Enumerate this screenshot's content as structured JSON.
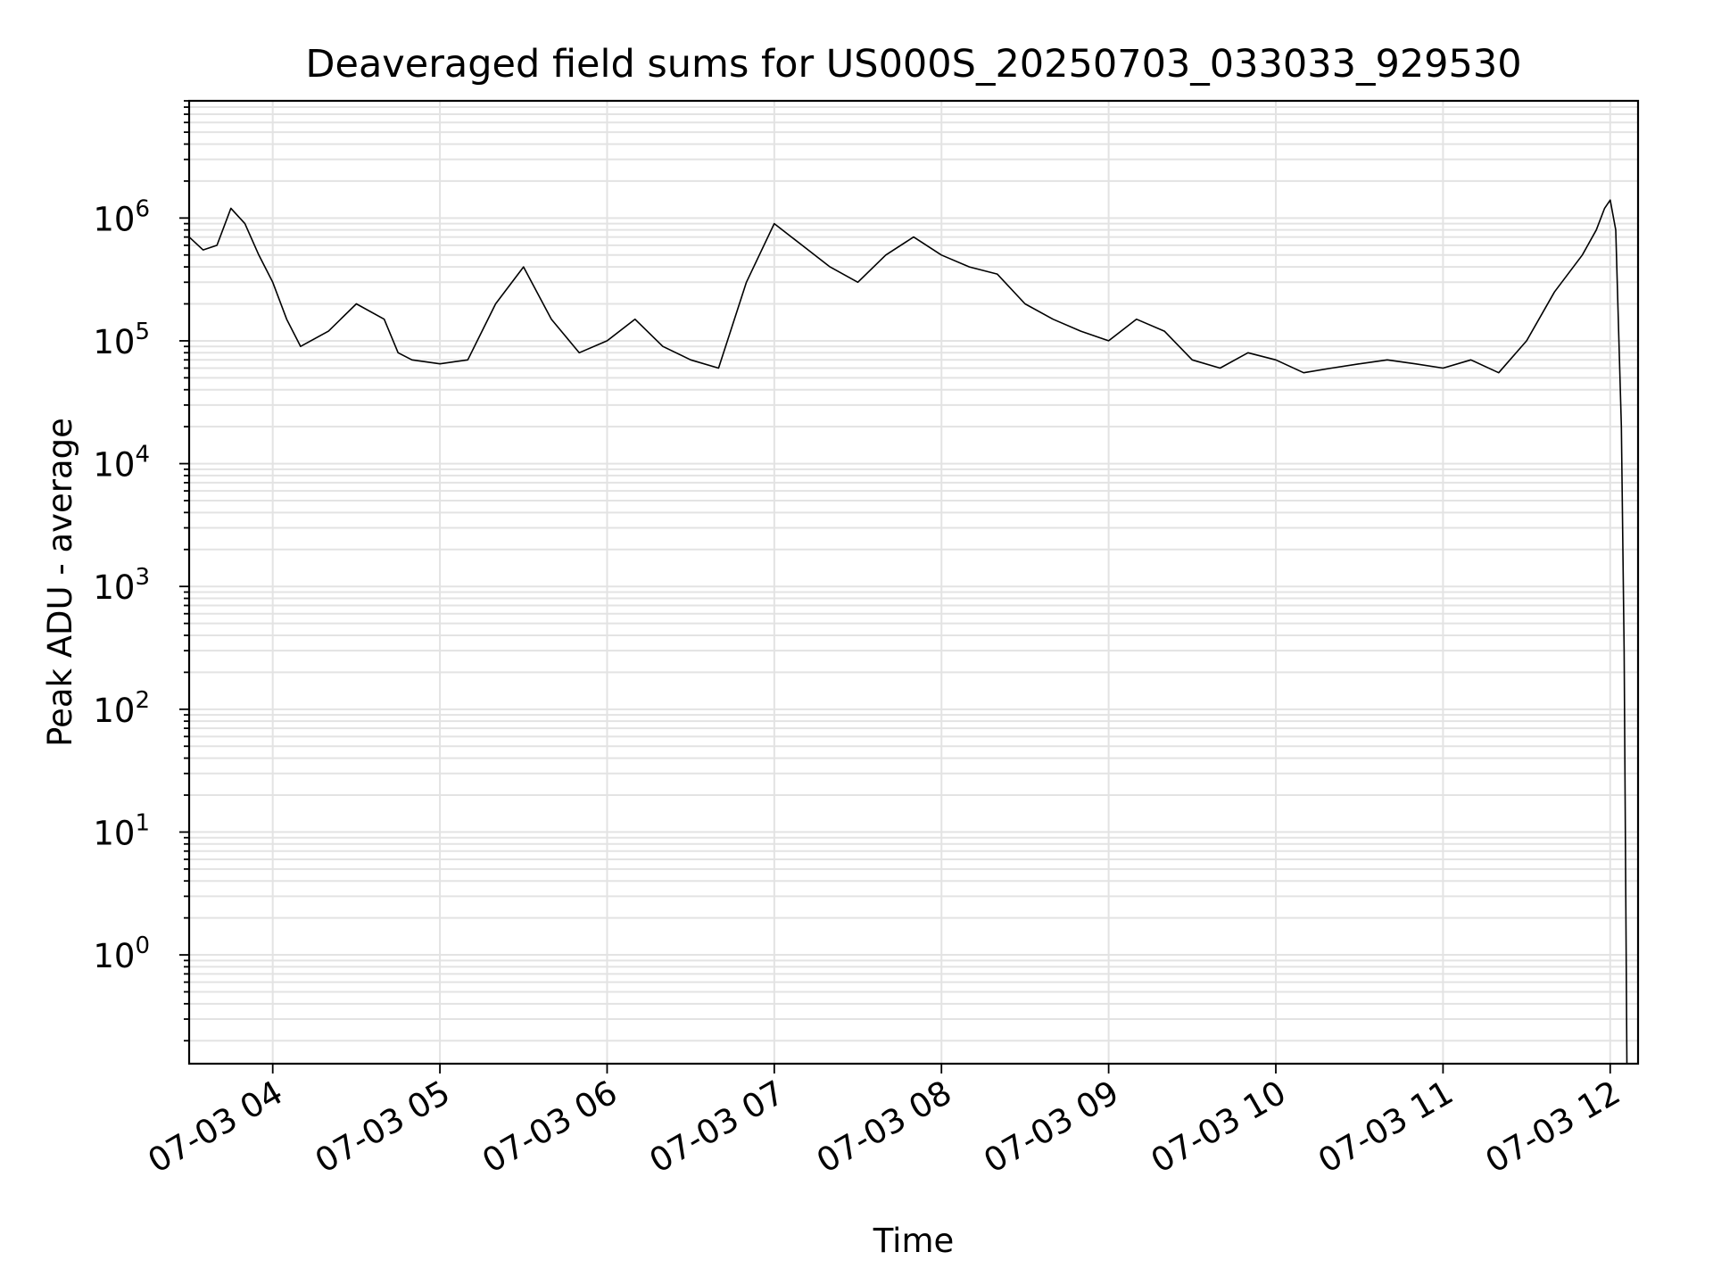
{
  "chart_data": {
    "type": "line",
    "title": "Deaveraged field sums for US000S_20250703_033033_929530",
    "xlabel": "Time",
    "ylabel": "Peak ADU - average",
    "yscale": "log",
    "grid": true,
    "x_tick_labels": [
      "07-03 04",
      "07-03 05",
      "07-03 06",
      "07-03 07",
      "07-03 08",
      "07-03 09",
      "07-03 10",
      "07-03 11",
      "07-03 12"
    ],
    "y_tick_labels": [
      {
        "base": "10",
        "exp": "0"
      },
      {
        "base": "10",
        "exp": "1"
      },
      {
        "base": "10",
        "exp": "2"
      },
      {
        "base": "10",
        "exp": "3"
      },
      {
        "base": "10",
        "exp": "4"
      },
      {
        "base": "10",
        "exp": "5"
      },
      {
        "base": "10",
        "exp": "6"
      }
    ],
    "xlim": [
      "07-03 03:30",
      "07-03 12:10"
    ],
    "ylim": [
      0.13,
      9000000
    ],
    "series": [
      {
        "color": "#000000",
        "x": [
          "07-03 03:30",
          "07-03 03:35",
          "07-03 03:40",
          "07-03 03:45",
          "07-03 03:50",
          "07-03 03:55",
          "07-03 04:00",
          "07-03 04:05",
          "07-03 04:10",
          "07-03 04:20",
          "07-03 04:30",
          "07-03 04:40",
          "07-03 04:45",
          "07-03 04:50",
          "07-03 05:00",
          "07-03 05:10",
          "07-03 05:20",
          "07-03 05:30",
          "07-03 05:40",
          "07-03 05:50",
          "07-03 06:00",
          "07-03 06:10",
          "07-03 06:20",
          "07-03 06:30",
          "07-03 06:40",
          "07-03 06:50",
          "07-03 07:00",
          "07-03 07:10",
          "07-03 07:20",
          "07-03 07:30",
          "07-03 07:40",
          "07-03 07:50",
          "07-03 08:00",
          "07-03 08:10",
          "07-03 08:20",
          "07-03 08:30",
          "07-03 08:40",
          "07-03 08:50",
          "07-03 09:00",
          "07-03 09:10",
          "07-03 09:20",
          "07-03 09:30",
          "07-03 09:40",
          "07-03 09:50",
          "07-03 10:00",
          "07-03 10:10",
          "07-03 10:20",
          "07-03 10:30",
          "07-03 10:40",
          "07-03 10:50",
          "07-03 11:00",
          "07-03 11:10",
          "07-03 11:20",
          "07-03 11:30",
          "07-03 11:40",
          "07-03 11:50",
          "07-03 11:55",
          "07-03 11:58",
          "07-03 12:00",
          "07-03 12:02",
          "07-03 12:04",
          "07-03 12:05",
          "07-03 12:06"
        ],
        "y": [
          700000,
          550000,
          600000,
          1200000,
          900000,
          500000,
          300000,
          150000,
          90000,
          120000,
          200000,
          150000,
          80000,
          70000,
          65000,
          70000,
          200000,
          400000,
          150000,
          80000,
          100000,
          150000,
          90000,
          70000,
          60000,
          300000,
          900000,
          600000,
          400000,
          300000,
          500000,
          700000,
          500000,
          400000,
          350000,
          200000,
          150000,
          120000,
          100000,
          150000,
          120000,
          70000,
          60000,
          80000,
          70000,
          55000,
          60000,
          65000,
          70000,
          65000,
          60000,
          70000,
          55000,
          100000,
          250000,
          500000,
          800000,
          1200000,
          1400000,
          800000,
          20000,
          300,
          0.13
        ]
      }
    ]
  }
}
